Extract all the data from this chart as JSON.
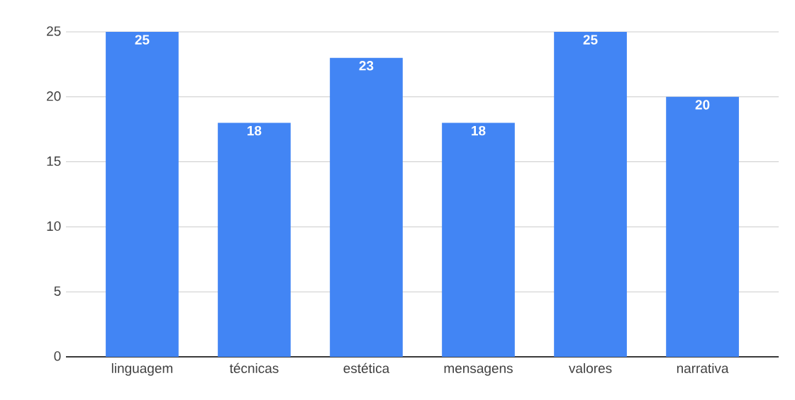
{
  "chart_data": {
    "type": "bar",
    "categories": [
      "linguagem",
      "técnicas",
      "estética",
      "mensagens",
      "valores",
      "narrativa"
    ],
    "values": [
      25,
      18,
      23,
      18,
      25,
      20
    ],
    "color": "#4285f4",
    "ylim": [
      0,
      25
    ],
    "yticks": [
      0,
      5,
      10,
      15,
      20,
      25
    ],
    "grid": "y",
    "data_labels": true
  }
}
